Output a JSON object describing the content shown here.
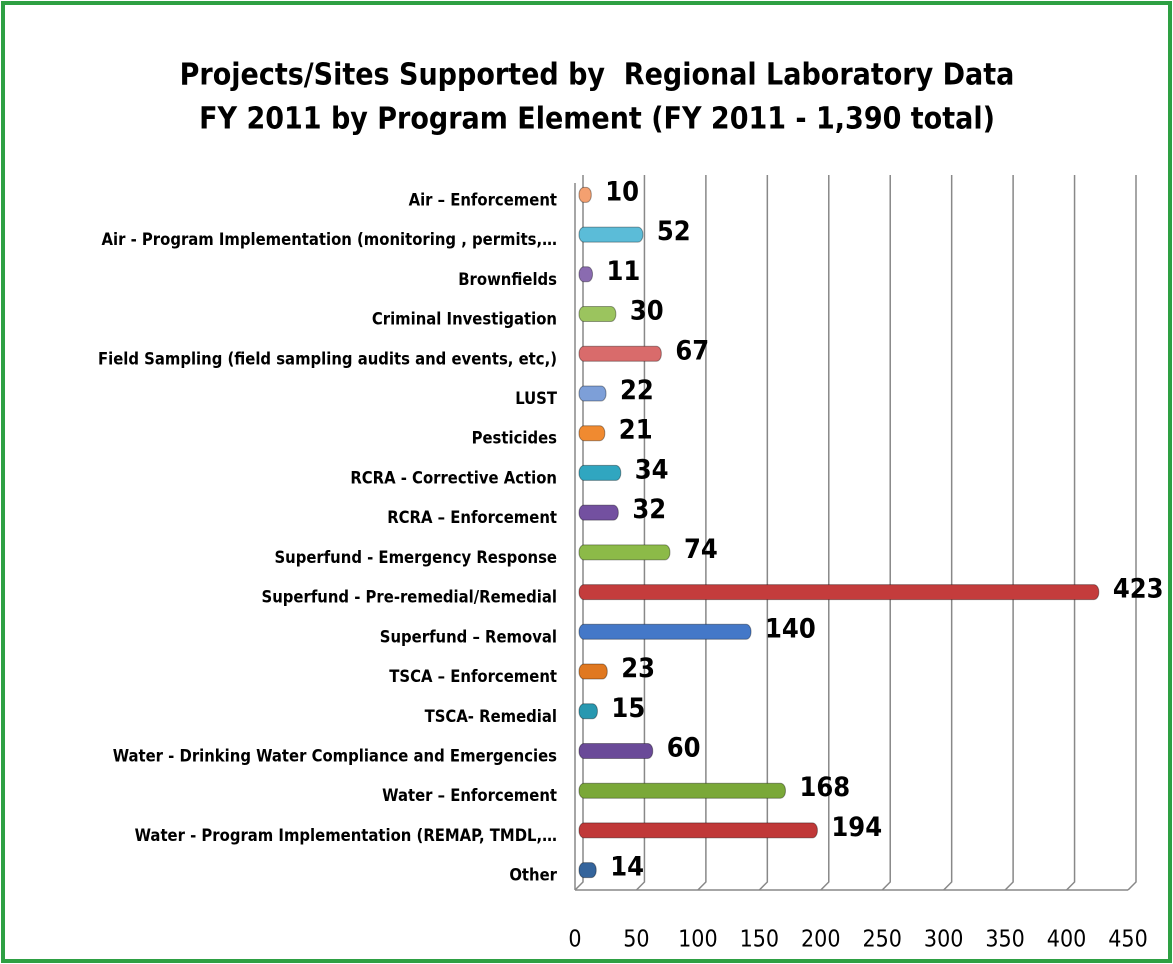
{
  "chart_data": {
    "type": "barh",
    "title": [
      "Projects/Sites Supported by  Regional Laboratory Data",
      "FY 2011 by Program Element (FY 2011 - 1,390 total)"
    ],
    "categories": [
      "Air – Enforcement",
      "Air - Program Implementation (monitoring , permits,…",
      "Brownfields",
      "Criminal Investigation",
      "Field Sampling (field sampling audits and events, etc,)",
      "LUST",
      "Pesticides",
      "RCRA - Corrective Action",
      "RCRA – Enforcement",
      "Superfund - Emergency Response",
      "Superfund - Pre-remedial/Remedial",
      "Superfund – Removal",
      "TSCA – Enforcement",
      "TSCA- Remedial",
      "Water - Drinking Water Compliance and Emergencies",
      "Water – Enforcement",
      "Water - Program Implementation (REMAP, TMDL,…",
      "Other"
    ],
    "values": [
      10,
      52,
      11,
      30,
      67,
      22,
      21,
      34,
      32,
      74,
      423,
      140,
      23,
      15,
      60,
      168,
      194,
      14
    ],
    "colors": [
      "#f4a070",
      "#5bbcd8",
      "#8a6bb0",
      "#9bc45e",
      "#d96b6b",
      "#7d9fd8",
      "#f08a30",
      "#30a6c0",
      "#7350a0",
      "#8cba48",
      "#c43c3c",
      "#4478c8",
      "#e07820",
      "#2898b0",
      "#6a4a98",
      "#7aa838",
      "#c03838",
      "#34649c"
    ],
    "xlim": [
      0,
      450
    ],
    "xticks": [
      0,
      50,
      100,
      150,
      200,
      250,
      300,
      350,
      400,
      450
    ],
    "grid": true
  }
}
